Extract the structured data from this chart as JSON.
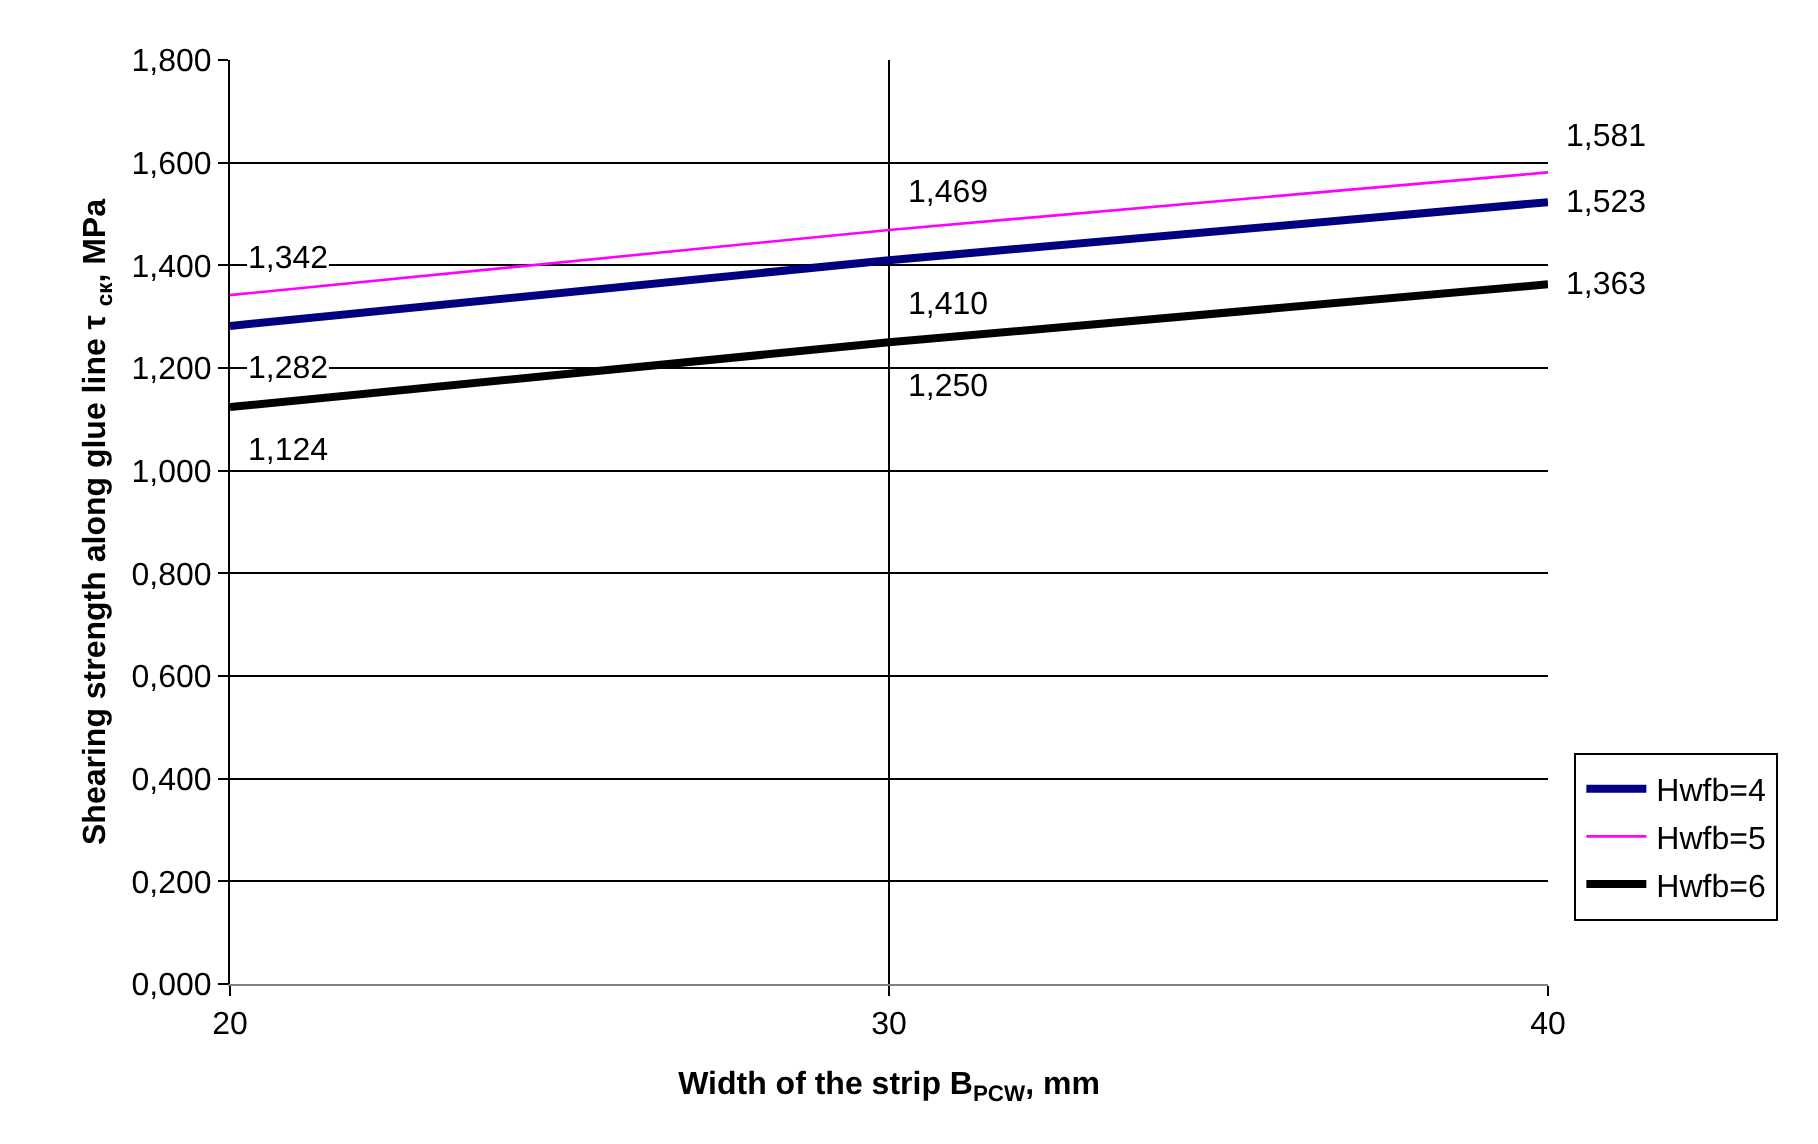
{
  "chart_data": {
    "type": "line",
    "xlabel": "Width of the strip B$_{PCW}$, mm",
    "ylabel": "Shearing strength along glue line τ $_{ск}$, MPa",
    "x": [
      20,
      30,
      40
    ],
    "series": [
      {
        "name": "Hwfb=4",
        "color": "#000080",
        "values": [
          1.282,
          1.41,
          1.523
        ],
        "value_labels": [
          "1,282",
          "1,410",
          "1,523"
        ]
      },
      {
        "name": "Hwfb=5",
        "color": "#ff00ff",
        "values": [
          1.342,
          1.469,
          1.581
        ],
        "value_labels": [
          "1,342",
          "1,469",
          "1,581"
        ]
      },
      {
        "name": "Hwfb=6",
        "color": "#000000",
        "values": [
          1.124,
          1.25,
          1.363
        ],
        "value_labels": [
          "1,124",
          "1,250",
          "1,363"
        ]
      }
    ],
    "xlim": [
      20,
      40
    ],
    "xticks": [
      20,
      30,
      40
    ],
    "ylim": [
      0,
      1.8
    ],
    "yticks": [
      {
        "value": 0,
        "label": "0,000"
      },
      {
        "value": 0.2,
        "label": "0,200"
      },
      {
        "value": 0.4,
        "label": "0,400"
      },
      {
        "value": 0.6,
        "label": "0,600"
      },
      {
        "value": 0.8,
        "label": "0,800"
      },
      {
        "value": 1.0,
        "label": "1,000"
      },
      {
        "value": 1.2,
        "label": "1,200"
      },
      {
        "value": 1.4,
        "label": "1,400"
      },
      {
        "value": 1.6,
        "label": "1,600"
      },
      {
        "value": 1.8,
        "label": "1,800"
      }
    ],
    "grid": true,
    "legend": "bottom right",
    "marker": "none",
    "line_style": "solid"
  }
}
